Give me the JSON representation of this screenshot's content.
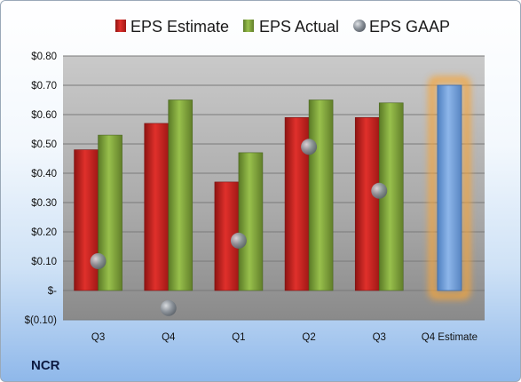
{
  "company": "NCR",
  "chart_data": {
    "type": "bar",
    "categories": [
      "Q3",
      "Q4",
      "Q1",
      "Q2",
      "Q3",
      "Q4 Estimate"
    ],
    "series": [
      {
        "name": "EPS Estimate",
        "type": "bar",
        "color": "#c8201e",
        "values": [
          0.48,
          0.57,
          0.37,
          0.59,
          0.59,
          null
        ]
      },
      {
        "name": "EPS Actual",
        "type": "bar",
        "color": "#7da33a",
        "values": [
          0.53,
          0.65,
          0.47,
          0.65,
          0.64,
          0.7
        ]
      },
      {
        "name": "EPS GAAP",
        "type": "scatter",
        "color": "#9aa3ad",
        "values": [
          0.1,
          -0.06,
          0.17,
          0.49,
          0.34,
          null
        ]
      }
    ],
    "highlight": {
      "category": "Q4 Estimate",
      "color": "#6f9fd8",
      "glow": "#f5a53a"
    },
    "yticks": [
      -0.1,
      0,
      0.1,
      0.2,
      0.3,
      0.4,
      0.5,
      0.6,
      0.7,
      0.8
    ],
    "ytick_labels": [
      "$(0.10)",
      "$-",
      "$0.10",
      "$0.20",
      "$0.30",
      "$0.40",
      "$0.50",
      "$0.60",
      "$0.70",
      "$0.80"
    ],
    "ylim": [
      -0.1,
      0.8
    ],
    "grid": true,
    "legend_position": "top"
  }
}
